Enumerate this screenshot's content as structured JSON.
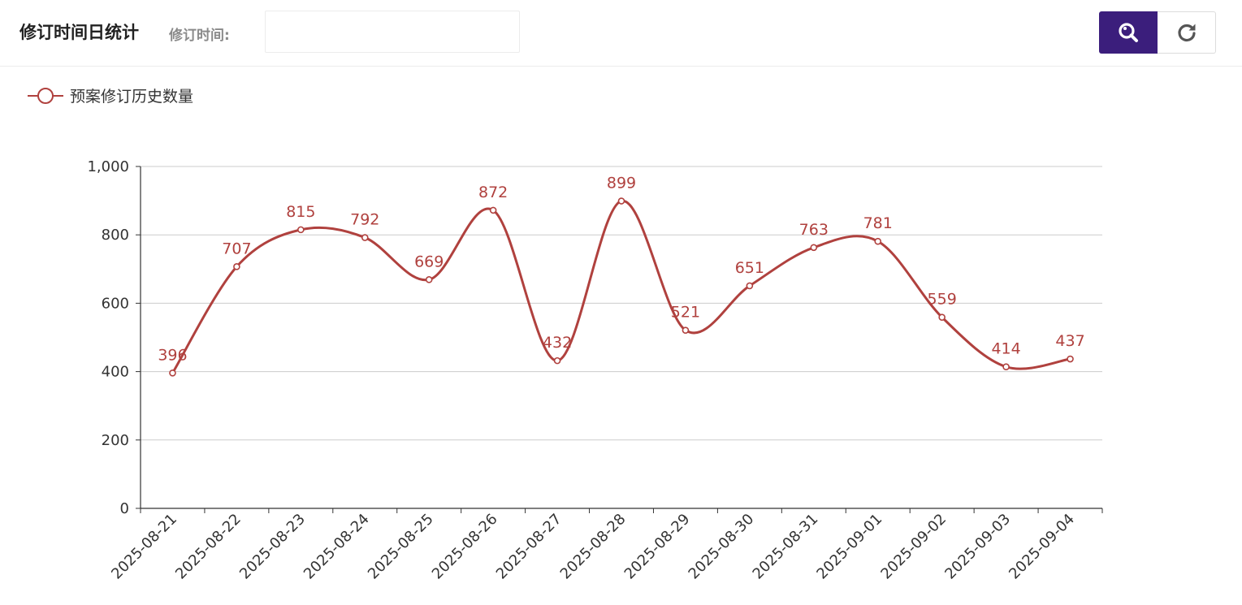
{
  "header": {
    "title": "修订时间日统计",
    "filter_label": "修订时间:",
    "date_input_value": "",
    "date_input_placeholder": "",
    "search_icon": "search-icon",
    "reset_icon": "refresh-icon"
  },
  "colors": {
    "series": "#b0413e",
    "primary_button": "#3b1e7c",
    "grid": "#cccccc",
    "axis": "#333333"
  },
  "chart_data": {
    "type": "line",
    "smooth": true,
    "categories": [
      "2025-08-21",
      "2025-08-22",
      "2025-08-23",
      "2025-08-24",
      "2025-08-25",
      "2025-08-26",
      "2025-08-27",
      "2025-08-28",
      "2025-08-29",
      "2025-08-30",
      "2025-08-31",
      "2025-09-01",
      "2025-09-02",
      "2025-09-03",
      "2025-09-04"
    ],
    "series": [
      {
        "name": "预案修订历史数量",
        "values": [
          396,
          707,
          815,
          792,
          669,
          872,
          432,
          899,
          521,
          651,
          763,
          781,
          559,
          414,
          437
        ]
      }
    ],
    "y_ticks": [
      "0",
      "200",
      "400",
      "600",
      "800",
      "1,000"
    ],
    "ylim": [
      0,
      1000
    ],
    "grid": true,
    "legend_position": "top-left",
    "data_labels": true
  }
}
